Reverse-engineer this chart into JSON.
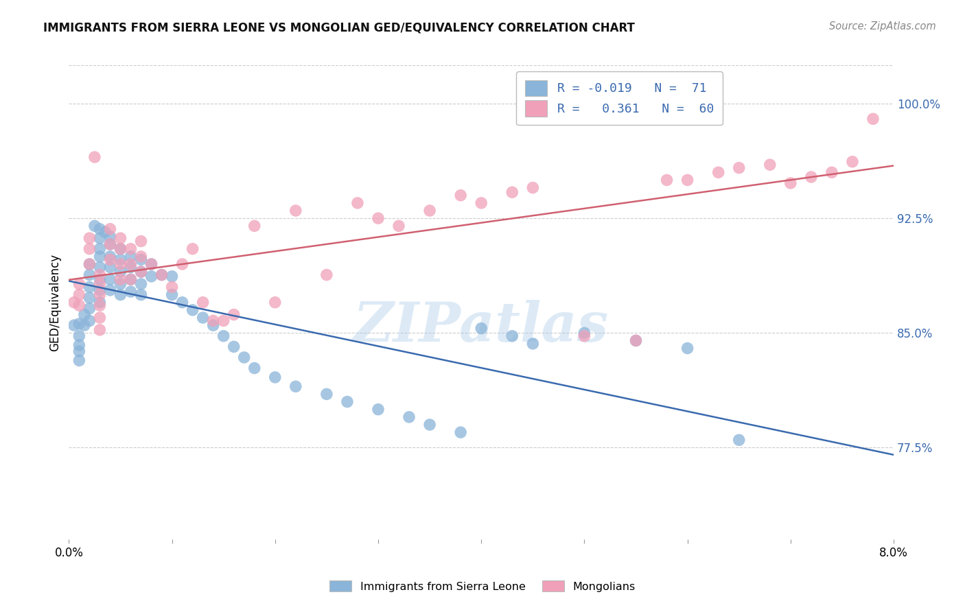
{
  "title": "IMMIGRANTS FROM SIERRA LEONE VS MONGOLIAN GED/EQUIVALENCY CORRELATION CHART",
  "source": "Source: ZipAtlas.com",
  "ylabel": "GED/Equivalency",
  "ytick_labels": [
    "100.0%",
    "92.5%",
    "85.0%",
    "77.5%"
  ],
  "ytick_values": [
    1.0,
    0.925,
    0.85,
    0.775
  ],
  "xlim": [
    0.0,
    0.08
  ],
  "ylim": [
    0.715,
    1.025
  ],
  "legend_r_blue": "-0.019",
  "legend_n_blue": "71",
  "legend_r_pink": "0.361",
  "legend_n_pink": "60",
  "legend_label_blue": "Immigrants from Sierra Leone",
  "legend_label_pink": "Mongolians",
  "blue_color": "#8ab4d9",
  "pink_color": "#f0a0b8",
  "line_blue": "#3a6aaf",
  "line_pink": "#d06070",
  "watermark": "ZIPatlas",
  "blue_x": [
    0.0005,
    0.001,
    0.001,
    0.001,
    0.001,
    0.001,
    0.0015,
    0.0015,
    0.002,
    0.002,
    0.002,
    0.002,
    0.002,
    0.002,
    0.0025,
    0.003,
    0.003,
    0.003,
    0.003,
    0.003,
    0.003,
    0.003,
    0.003,
    0.0035,
    0.004,
    0.004,
    0.004,
    0.004,
    0.004,
    0.004,
    0.005,
    0.005,
    0.005,
    0.005,
    0.005,
    0.006,
    0.006,
    0.006,
    0.006,
    0.007,
    0.007,
    0.007,
    0.007,
    0.008,
    0.008,
    0.009,
    0.01,
    0.01,
    0.011,
    0.012,
    0.013,
    0.014,
    0.015,
    0.016,
    0.017,
    0.018,
    0.02,
    0.022,
    0.025,
    0.027,
    0.03,
    0.033,
    0.035,
    0.038,
    0.04,
    0.043,
    0.045,
    0.05,
    0.055,
    0.06,
    0.065
  ],
  "blue_y": [
    0.855,
    0.856,
    0.848,
    0.842,
    0.838,
    0.832,
    0.862,
    0.855,
    0.895,
    0.888,
    0.88,
    0.873,
    0.866,
    0.858,
    0.92,
    0.918,
    0.912,
    0.905,
    0.9,
    0.893,
    0.885,
    0.878,
    0.87,
    0.916,
    0.913,
    0.908,
    0.9,
    0.893,
    0.885,
    0.878,
    0.905,
    0.898,
    0.89,
    0.882,
    0.875,
    0.9,
    0.893,
    0.885,
    0.877,
    0.898,
    0.89,
    0.882,
    0.875,
    0.895,
    0.887,
    0.888,
    0.887,
    0.875,
    0.87,
    0.865,
    0.86,
    0.855,
    0.848,
    0.841,
    0.834,
    0.827,
    0.821,
    0.815,
    0.81,
    0.805,
    0.8,
    0.795,
    0.79,
    0.785,
    0.853,
    0.848,
    0.843,
    0.85,
    0.845,
    0.84,
    0.78
  ],
  "pink_x": [
    0.0005,
    0.001,
    0.001,
    0.001,
    0.002,
    0.002,
    0.002,
    0.0025,
    0.003,
    0.003,
    0.003,
    0.003,
    0.003,
    0.003,
    0.004,
    0.004,
    0.004,
    0.005,
    0.005,
    0.005,
    0.005,
    0.006,
    0.006,
    0.006,
    0.007,
    0.007,
    0.007,
    0.008,
    0.009,
    0.01,
    0.011,
    0.012,
    0.013,
    0.014,
    0.015,
    0.016,
    0.018,
    0.02,
    0.022,
    0.025,
    0.028,
    0.03,
    0.032,
    0.035,
    0.038,
    0.04,
    0.043,
    0.045,
    0.05,
    0.055,
    0.058,
    0.06,
    0.063,
    0.065,
    0.068,
    0.07,
    0.072,
    0.074,
    0.076,
    0.078
  ],
  "pink_y": [
    0.87,
    0.882,
    0.875,
    0.868,
    0.912,
    0.905,
    0.895,
    0.965,
    0.888,
    0.882,
    0.875,
    0.868,
    0.86,
    0.852,
    0.918,
    0.908,
    0.898,
    0.912,
    0.905,
    0.895,
    0.885,
    0.905,
    0.895,
    0.885,
    0.91,
    0.9,
    0.89,
    0.895,
    0.888,
    0.88,
    0.895,
    0.905,
    0.87,
    0.858,
    0.858,
    0.862,
    0.92,
    0.87,
    0.93,
    0.888,
    0.935,
    0.925,
    0.92,
    0.93,
    0.94,
    0.935,
    0.942,
    0.945,
    0.848,
    0.845,
    0.95,
    0.95,
    0.955,
    0.958,
    0.96,
    0.948,
    0.952,
    0.955,
    0.962,
    0.99
  ]
}
